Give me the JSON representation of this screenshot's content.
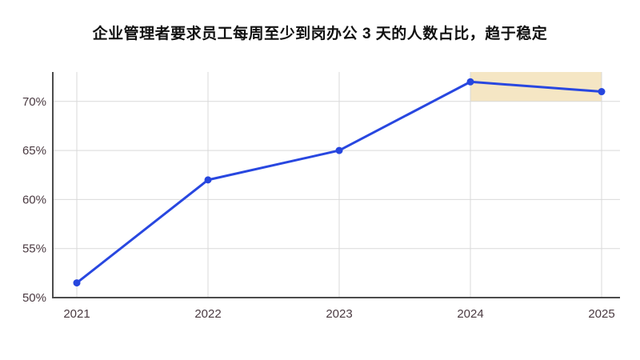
{
  "title": "企业管理者要求员工每周至少到岗办公 3 天的人数占比，趋于稳定",
  "chart_data": {
    "type": "line",
    "title": "企业管理者要求员工每周至少到岗办公 3 天的人数占比，趋于稳定",
    "categories": [
      "2021",
      "2022",
      "2023",
      "2024",
      "2025"
    ],
    "values": [
      51.5,
      62,
      65,
      72,
      71
    ],
    "xlabel": "",
    "ylabel": "",
    "ylim": [
      50,
      73
    ],
    "y_ticks": [
      50,
      55,
      60,
      65,
      70
    ],
    "y_tick_labels": [
      "50%",
      "55%",
      "60%",
      "65%",
      "70%"
    ],
    "grid": true,
    "legend": false,
    "line_color": "#2847e0",
    "point_color": "#2646de",
    "highlight_band": {
      "from_category": "2024",
      "to_category": "2025",
      "y_from": 70,
      "y_to": 73,
      "color": "#f5e6c4"
    }
  },
  "colors": {
    "background": "#ffffff",
    "grid": "#d9d9d9",
    "axis": "#4c4c4c",
    "tick_label": "#4a3a41",
    "title": "#111111"
  }
}
